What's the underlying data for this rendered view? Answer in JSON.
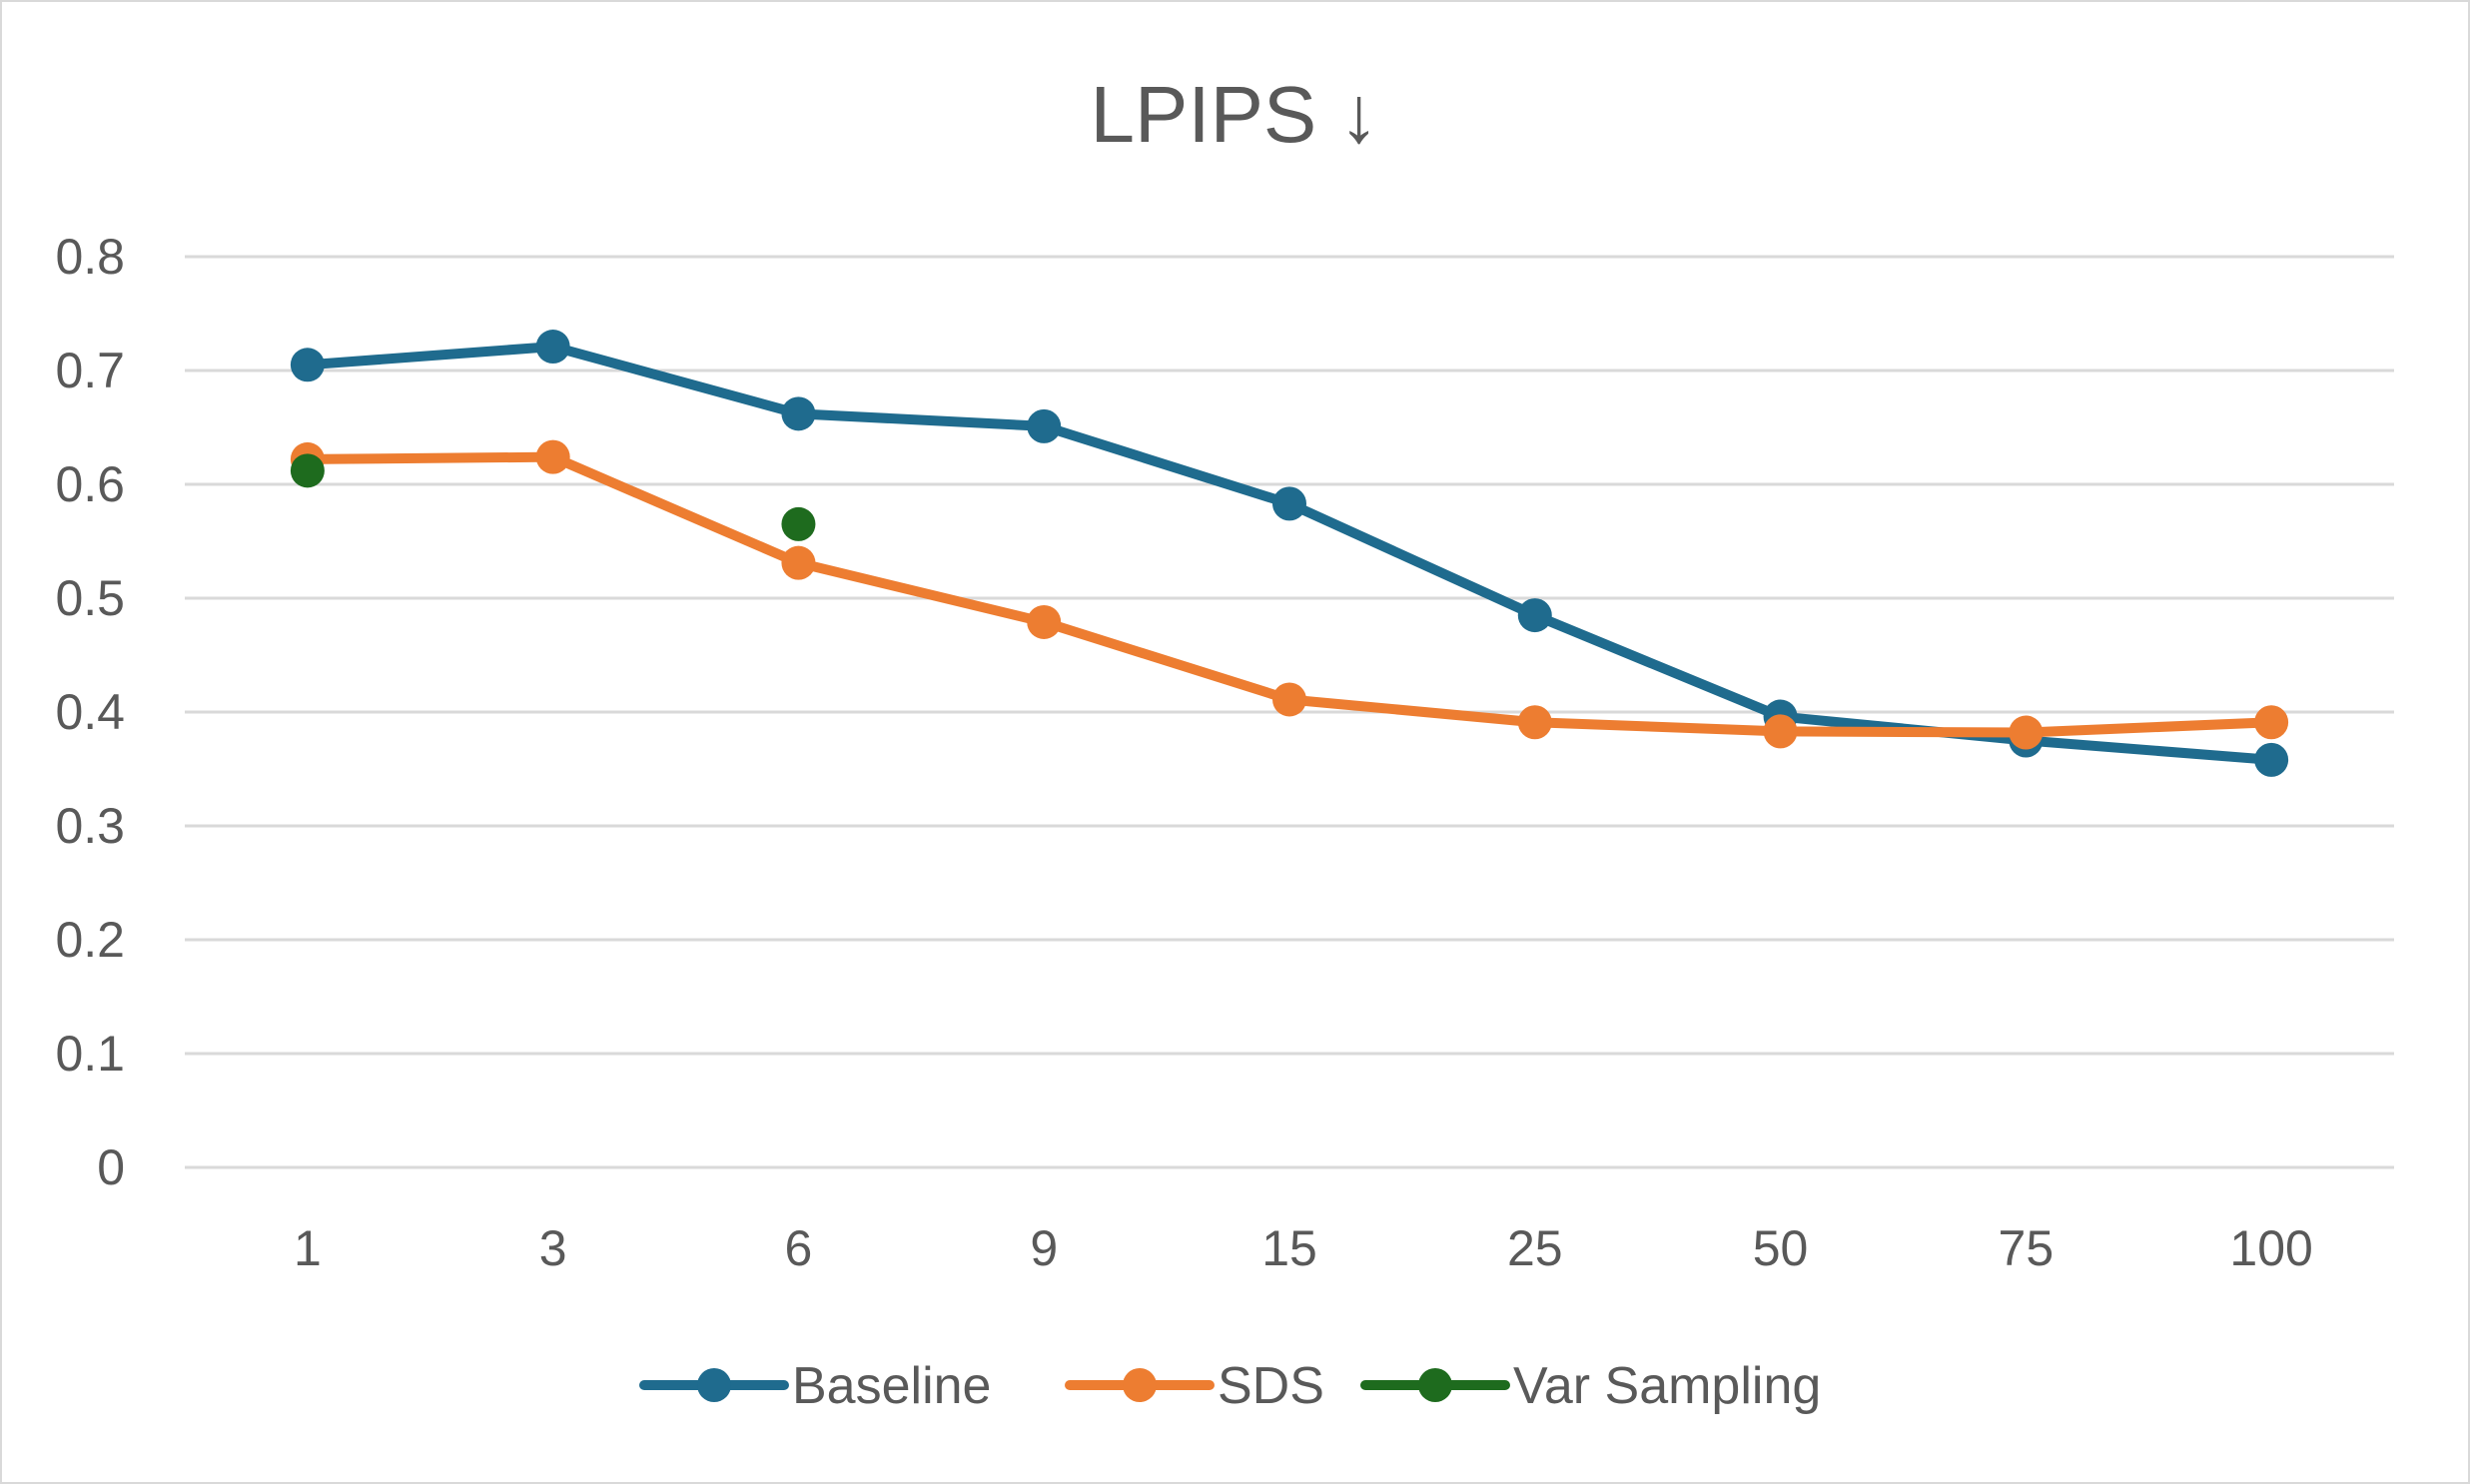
{
  "chart_data": {
    "type": "line",
    "title": "LPIPS ↓",
    "xlabel": "",
    "ylabel": "",
    "categories": [
      "1",
      "3",
      "6",
      "9",
      "15",
      "25",
      "50",
      "75",
      "100"
    ],
    "ylim": [
      0,
      0.8
    ],
    "yticks": [
      "0",
      "0.1",
      "0.2",
      "0.3",
      "0.4",
      "0.5",
      "0.6",
      "0.7",
      "0.8"
    ],
    "grid": "horizontal",
    "legend": "bottom",
    "series": [
      {
        "name": "Baseline",
        "color": "#1f6b8e",
        "values": [
          0.705,
          0.721,
          0.662,
          0.651,
          0.583,
          0.485,
          0.396,
          0.375,
          0.358
        ]
      },
      {
        "name": "SDS",
        "color": "#ed7d31",
        "values": [
          0.622,
          0.624,
          0.531,
          0.479,
          0.411,
          0.391,
          0.383,
          0.382,
          0.391
        ]
      },
      {
        "name": "Var Sampling",
        "color": "#1e6b1e",
        "values": [
          0.612,
          null,
          0.565,
          null,
          null,
          null,
          null,
          null,
          null
        ]
      }
    ]
  }
}
